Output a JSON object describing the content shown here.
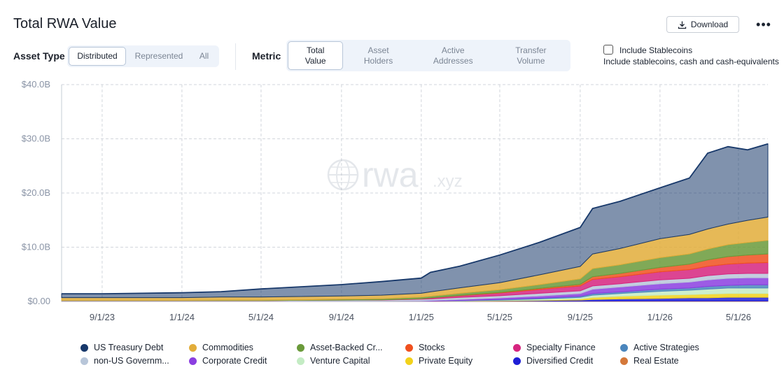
{
  "header": {
    "title": "Total RWA Value",
    "download_label": "Download",
    "more_label": "•••"
  },
  "controls": {
    "asset_type": {
      "label": "Asset Type",
      "options": [
        "Distributed",
        "Represented",
        "All"
      ],
      "selected": "Distributed"
    },
    "metric": {
      "label": "Metric",
      "options": [
        {
          "line1": "Total",
          "line2": "Value"
        },
        {
          "line1": "Asset",
          "line2": "Holders"
        },
        {
          "line1": "Active",
          "line2": "Addresses"
        },
        {
          "line1": "Transfer",
          "line2": "Volume"
        }
      ],
      "selected": 0
    },
    "stablecoins": {
      "label": "Include Stablecoins",
      "description": "Include stablecoins, cash and cash-equivalents",
      "checked": false
    }
  },
  "watermark": {
    "text_main": "rwa",
    "text_suffix": ".xyz"
  },
  "colors": {
    "grid": "#d2d6dc",
    "tick_text": "#8a94a6"
  },
  "chart_data": {
    "type": "area",
    "stacked": true,
    "x_ticks": [
      "9/1/23",
      "1/1/24",
      "5/1/24",
      "9/1/24",
      "1/1/25",
      "5/1/25",
      "9/1/25",
      "1/1/26",
      "5/1/26"
    ],
    "y_ticks": [
      "$0.00",
      "$10.0B",
      "$20.0B",
      "$30.0B",
      "$40.0B"
    ],
    "ylim": [
      0,
      40
    ],
    "y_unit": "B USD",
    "grid": true,
    "legend_position": "bottom",
    "x_dates": [
      "2023-07-01",
      "2023-09-01",
      "2023-11-01",
      "2024-01-01",
      "2024-03-01",
      "2024-05-01",
      "2024-07-01",
      "2024-09-01",
      "2024-11-01",
      "2025-01-01",
      "2025-01-15",
      "2025-03-01",
      "2025-05-01",
      "2025-07-01",
      "2025-09-01",
      "2025-09-20",
      "2025-11-01",
      "2026-01-01",
      "2026-02-15",
      "2026-03-15",
      "2026-04-15",
      "2026-05-15",
      "2026-06-15"
    ],
    "series": [
      {
        "name": "Real Estate",
        "color": "#d4783a",
        "values": [
          0.05,
          0.05,
          0.05,
          0.05,
          0.05,
          0.05,
          0.05,
          0.05,
          0.05,
          0.05,
          0.05,
          0.05,
          0.05,
          0.05,
          0.05,
          0.05,
          0.06,
          0.06,
          0.06,
          0.06,
          0.06,
          0.06,
          0.06
        ]
      },
      {
        "name": "Diversified Credit",
        "color": "#1f1fd6",
        "values": [
          0,
          0,
          0,
          0,
          0,
          0,
          0,
          0,
          0,
          0,
          0,
          0,
          0.05,
          0.1,
          0.2,
          0.3,
          0.4,
          0.5,
          0.6,
          0.6,
          0.7,
          0.7,
          0.7
        ]
      },
      {
        "name": "Private Equity",
        "color": "#f2d21b",
        "values": [
          0,
          0,
          0,
          0,
          0,
          0,
          0,
          0,
          0,
          0,
          0,
          0,
          0.05,
          0.1,
          0.2,
          0.4,
          0.5,
          0.6,
          0.6,
          0.7,
          0.7,
          0.7,
          0.7
        ]
      },
      {
        "name": "Venture Capital",
        "color": "#c4ecc4",
        "values": [
          0,
          0,
          0,
          0,
          0,
          0,
          0,
          0,
          0,
          0,
          0,
          0.05,
          0.1,
          0.2,
          0.3,
          0.4,
          0.5,
          0.7,
          0.8,
          0.9,
          1.0,
          1.0,
          1.0
        ]
      },
      {
        "name": "Active Strategies",
        "color": "#4a86bd",
        "values": [
          0,
          0,
          0,
          0,
          0,
          0,
          0,
          0,
          0,
          0,
          0,
          0.05,
          0.1,
          0.15,
          0.2,
          0.3,
          0.3,
          0.4,
          0.4,
          0.5,
          0.5,
          0.6,
          0.6
        ]
      },
      {
        "name": "Corporate Credit",
        "color": "#8b3ee0",
        "values": [
          0,
          0,
          0,
          0,
          0,
          0,
          0,
          0,
          0,
          0.05,
          0.1,
          0.2,
          0.3,
          0.4,
          0.5,
          0.8,
          0.9,
          1.0,
          1.1,
          1.2,
          1.3,
          1.3,
          1.3
        ]
      },
      {
        "name": "non-US Government Debt",
        "color": "#b8c6d9",
        "values": [
          0.1,
          0.1,
          0.1,
          0.1,
          0.1,
          0.1,
          0.15,
          0.2,
          0.2,
          0.3,
          0.3,
          0.4,
          0.4,
          0.5,
          0.5,
          0.6,
          0.6,
          0.7,
          0.7,
          0.8,
          0.8,
          0.8,
          0.8
        ]
      },
      {
        "name": "Specialty Finance",
        "color": "#d6257f",
        "values": [
          0,
          0,
          0,
          0,
          0,
          0,
          0,
          0,
          0.05,
          0.1,
          0.2,
          0.3,
          0.5,
          0.7,
          0.9,
          1.2,
          1.3,
          1.5,
          1.6,
          1.7,
          1.8,
          1.9,
          2.0
        ]
      },
      {
        "name": "Stocks",
        "color": "#f0501e",
        "values": [
          0,
          0,
          0,
          0,
          0,
          0,
          0,
          0,
          0,
          0,
          0,
          0.05,
          0.1,
          0.2,
          0.3,
          0.5,
          0.6,
          0.8,
          1.0,
          1.2,
          1.4,
          1.5,
          1.6
        ]
      },
      {
        "name": "Asset-Backed Credit",
        "color": "#6a9a3a",
        "values": [
          0.05,
          0.05,
          0.05,
          0.05,
          0.1,
          0.1,
          0.1,
          0.15,
          0.2,
          0.3,
          0.3,
          0.4,
          0.5,
          0.7,
          1.0,
          1.5,
          1.6,
          1.8,
          1.9,
          2.0,
          2.2,
          2.3,
          2.5
        ]
      },
      {
        "name": "Commodities",
        "color": "#e2ad3a",
        "values": [
          0.5,
          0.5,
          0.5,
          0.5,
          0.55,
          0.55,
          0.6,
          0.6,
          0.65,
          0.7,
          0.8,
          1.0,
          1.3,
          1.8,
          2.3,
          2.7,
          3.0,
          3.5,
          3.6,
          3.7,
          3.8,
          4.1,
          4.3
        ]
      },
      {
        "name": "US Treasury Debt",
        "color": "#17386a",
        "values": [
          0.7,
          0.7,
          0.8,
          0.9,
          1.0,
          1.5,
          1.8,
          2.1,
          2.5,
          2.8,
          3.6,
          4.0,
          5.1,
          6.0,
          7.2,
          8.4,
          8.7,
          9.4,
          10.4,
          14.0,
          14.3,
          13.0,
          13.5
        ]
      }
    ]
  },
  "legend": [
    {
      "label": "US Treasury Debt",
      "color": "#17386a"
    },
    {
      "label": "Commodities",
      "color": "#e2ad3a"
    },
    {
      "label": "Asset-Backed Cr...",
      "color": "#6a9a3a"
    },
    {
      "label": "Stocks",
      "color": "#f0501e"
    },
    {
      "label": "Specialty Finance",
      "color": "#d6257f"
    },
    {
      "label": "Active Strategies",
      "color": "#4a86bd"
    },
    {
      "label": "non-US Governm...",
      "color": "#b8c6d9"
    },
    {
      "label": "Corporate Credit",
      "color": "#8b3ee0"
    },
    {
      "label": "Venture Capital",
      "color": "#c4ecc4"
    },
    {
      "label": "Private Equity",
      "color": "#f2d21b"
    },
    {
      "label": "Diversified Credit",
      "color": "#1f1fd6"
    },
    {
      "label": "Real Estate",
      "color": "#d4783a"
    }
  ]
}
